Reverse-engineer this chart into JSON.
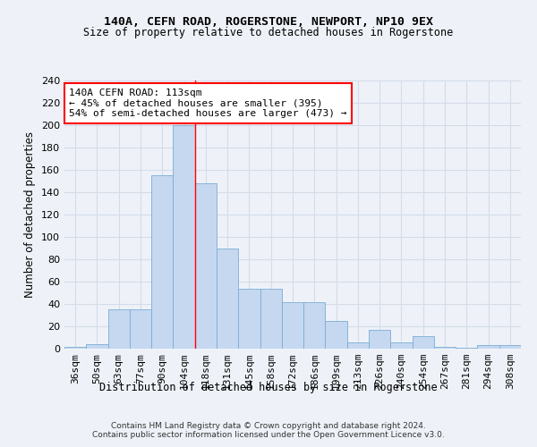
{
  "title1": "140A, CEFN ROAD, ROGERSTONE, NEWPORT, NP10 9EX",
  "title2": "Size of property relative to detached houses in Rogerstone",
  "xlabel": "Distribution of detached houses by size in Rogerstone",
  "ylabel": "Number of detached properties",
  "categories": [
    "36sqm",
    "50sqm",
    "63sqm",
    "77sqm",
    "90sqm",
    "104sqm",
    "118sqm",
    "131sqm",
    "145sqm",
    "158sqm",
    "172sqm",
    "186sqm",
    "199sqm",
    "213sqm",
    "226sqm",
    "240sqm",
    "254sqm",
    "267sqm",
    "281sqm",
    "294sqm",
    "308sqm"
  ],
  "values": [
    2,
    4,
    35,
    35,
    155,
    200,
    148,
    90,
    54,
    54,
    42,
    42,
    25,
    6,
    17,
    6,
    11,
    2,
    1,
    3,
    3
  ],
  "bar_color": "#c5d8f0",
  "bar_edge_color": "#7aadd4",
  "grid_color": "#d4dce8",
  "background_color": "#eef2f8",
  "annotation_text": "140A CEFN ROAD: 113sqm\n← 45% of detached houses are smaller (395)\n54% of semi-detached houses are larger (473) →",
  "annotation_box_color": "white",
  "annotation_box_edge": "red",
  "vline_x": 5.5,
  "vline_color": "red",
  "ylim": [
    0,
    240
  ],
  "yticks": [
    0,
    20,
    40,
    60,
    80,
    100,
    120,
    140,
    160,
    180,
    200,
    220,
    240
  ],
  "footer1": "Contains HM Land Registry data © Crown copyright and database right 2024.",
  "footer2": "Contains public sector information licensed under the Open Government Licence v3.0.",
  "title1_fontsize": 9.5,
  "title2_fontsize": 8.5,
  "tick_fontsize": 8,
  "ylabel_fontsize": 8.5,
  "xlabel_fontsize": 8.5,
  "annot_fontsize": 8,
  "footer_fontsize": 6.5
}
